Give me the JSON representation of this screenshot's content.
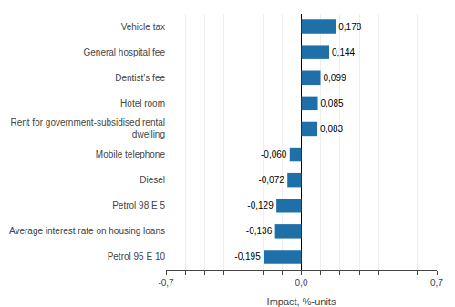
{
  "chart_data": {
    "type": "bar",
    "orientation": "horizontal",
    "categories": [
      "Petrol 95 E 10",
      "Average interest rate on housing loans",
      "Petrol 98 E 5",
      "Diesel",
      "Mobile telephone",
      "Rent for government-subsidised rental\ndwelling",
      "Hotel room",
      "Dentist’s fee",
      "General hospital fee",
      "Vehicle tax"
    ],
    "values": [
      -0.195,
      -0.136,
      -0.129,
      -0.072,
      -0.06,
      0.083,
      0.085,
      0.099,
      0.144,
      0.178
    ],
    "value_labels": [
      "-0,195",
      "-0,136",
      "-0,129",
      "-0,072",
      "-0,060",
      "0,083",
      "0,085",
      "0,099",
      "0,144",
      "0,178"
    ],
    "data_labels": true,
    "color": "#1f6fa8",
    "xlabel": "Impact, %-units",
    "xlim": [
      -0.7,
      0.7
    ],
    "xticks": [
      {
        "value": -0.7,
        "label": "-0,7"
      },
      {
        "value": -0.6,
        "label": ""
      },
      {
        "value": -0.5,
        "label": ""
      },
      {
        "value": -0.4,
        "label": ""
      },
      {
        "value": -0.3,
        "label": ""
      },
      {
        "value": -0.2,
        "label": ""
      },
      {
        "value": -0.1,
        "label": ""
      },
      {
        "value": 0.0,
        "label": "0,0"
      },
      {
        "value": 0.1,
        "label": ""
      },
      {
        "value": 0.2,
        "label": ""
      },
      {
        "value": 0.3,
        "label": ""
      },
      {
        "value": 0.4,
        "label": ""
      },
      {
        "value": 0.5,
        "label": ""
      },
      {
        "value": 0.6,
        "label": ""
      },
      {
        "value": 0.7,
        "label": "0,7"
      }
    ],
    "grid": true
  }
}
